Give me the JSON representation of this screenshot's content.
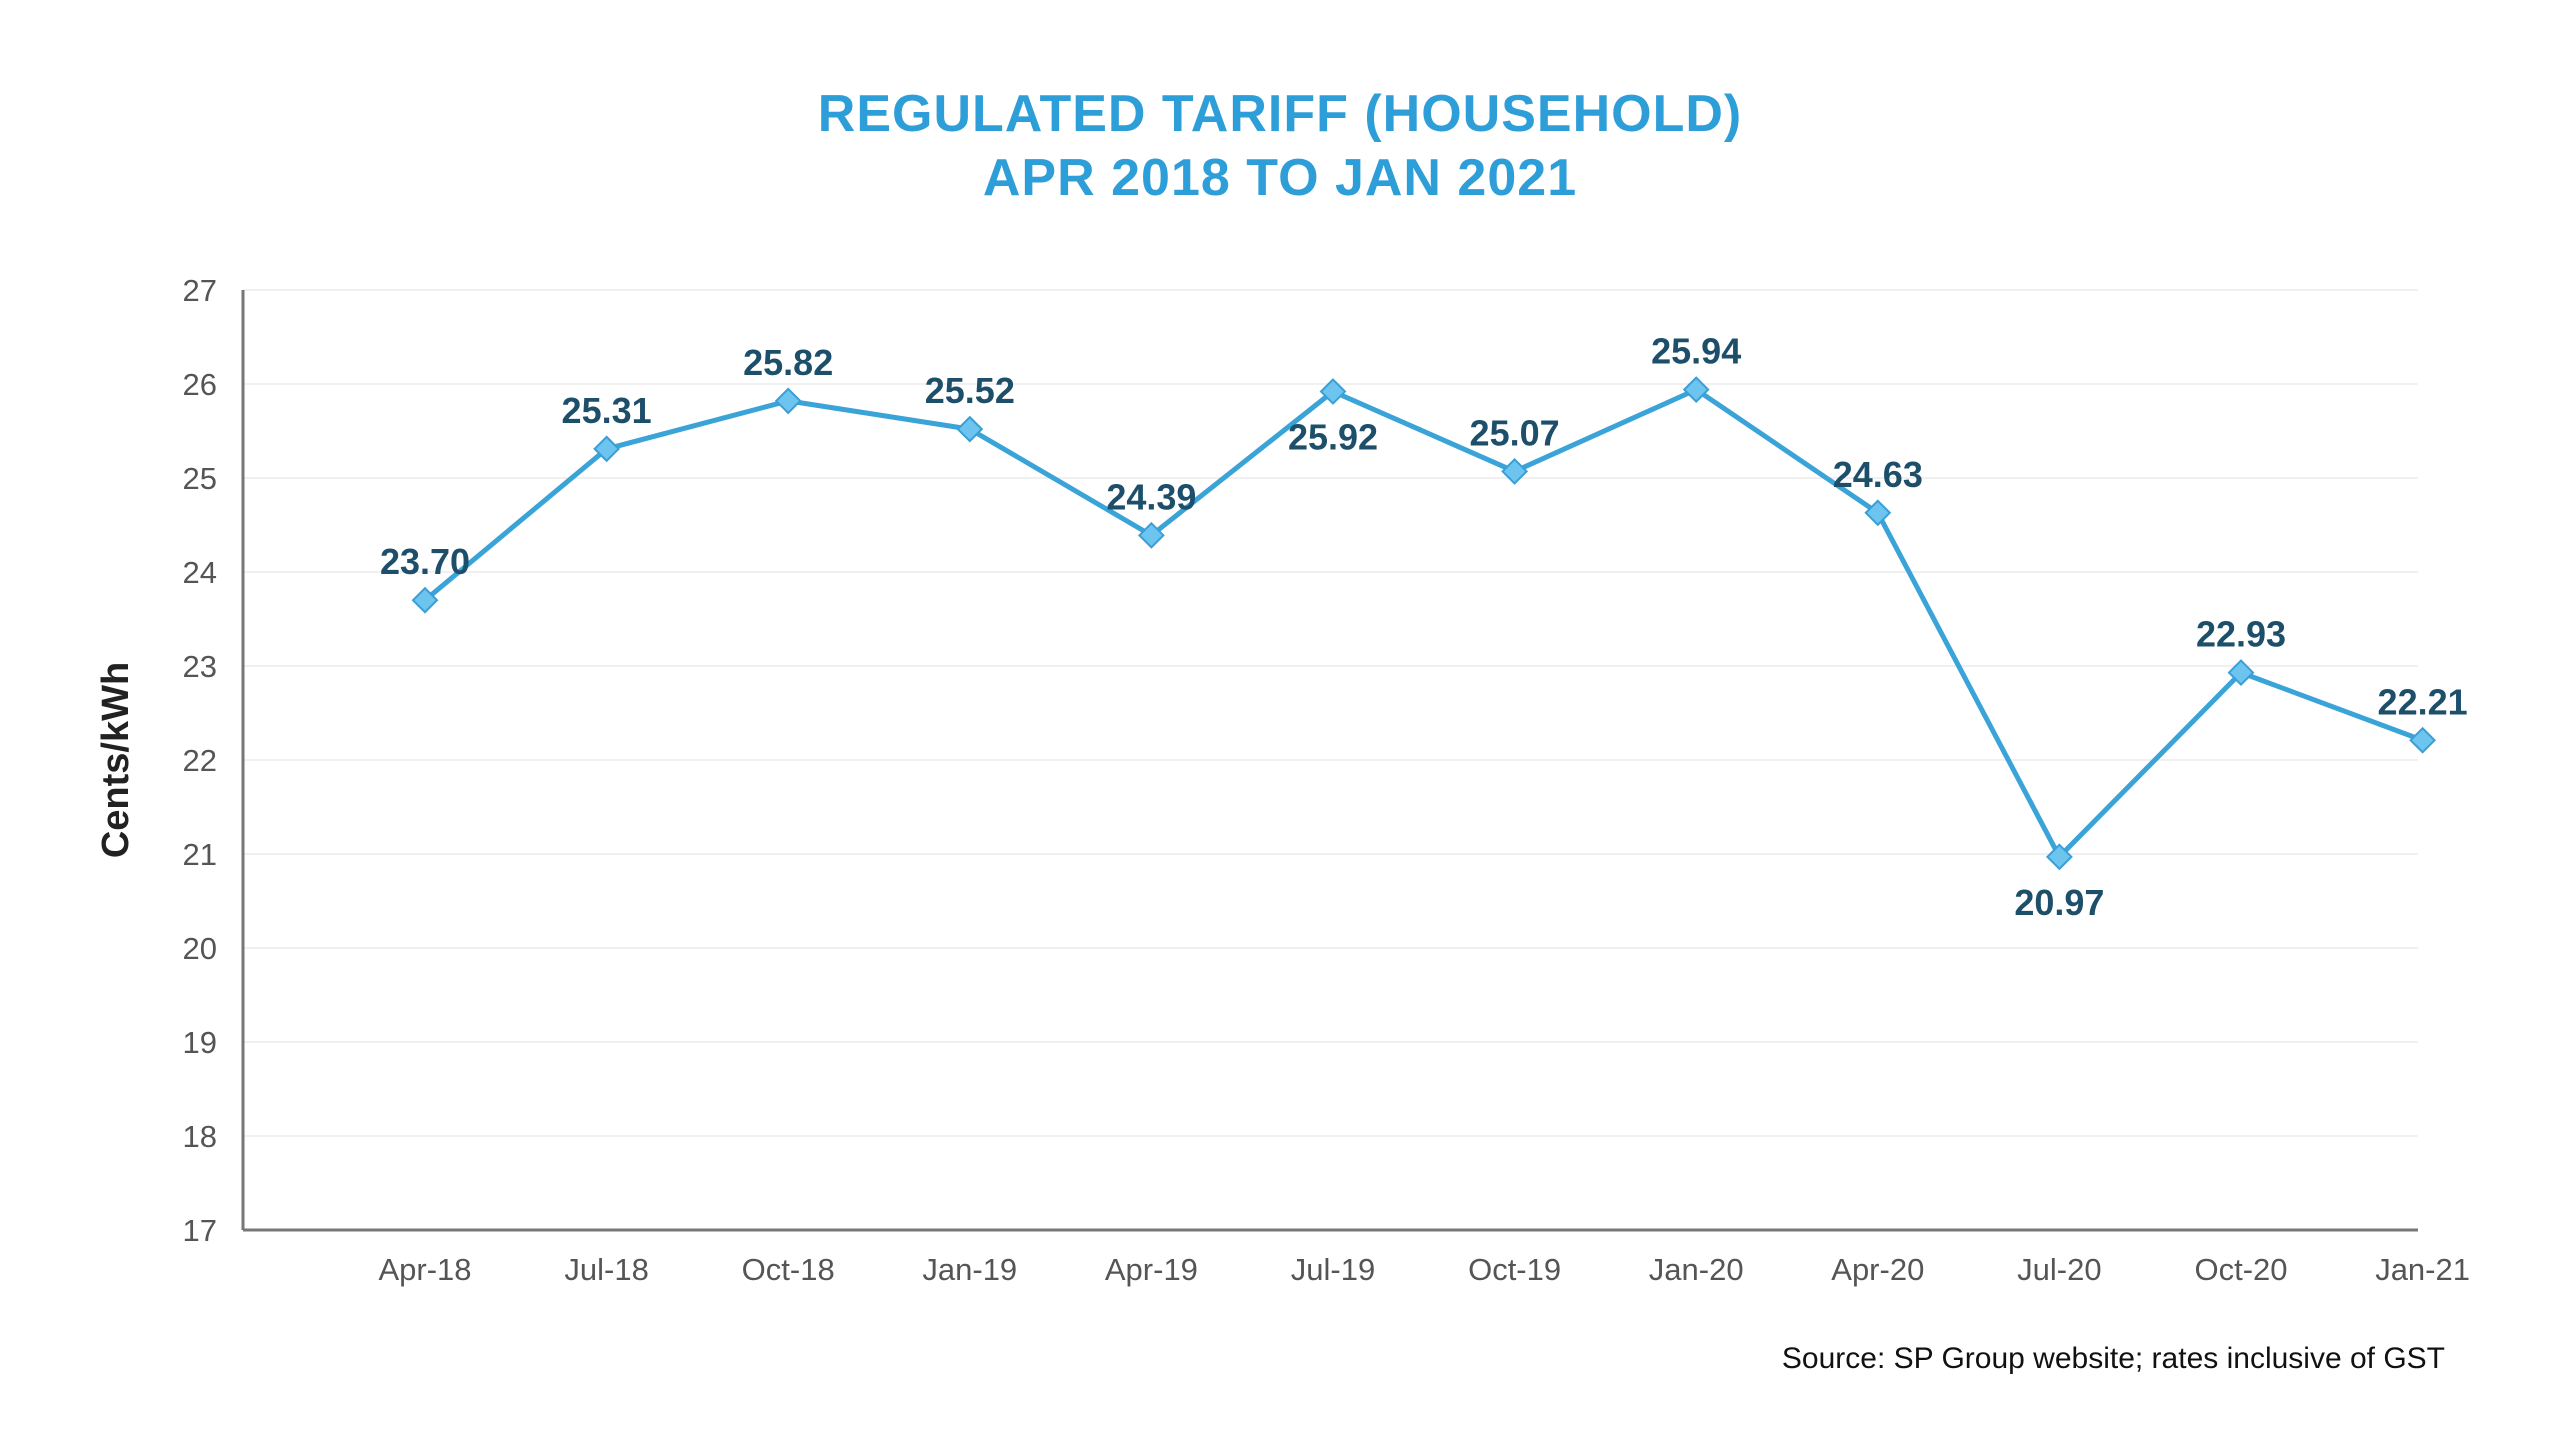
{
  "chart_data": {
    "type": "line",
    "title": [
      "REGULATED TARIFF (HOUSEHOLD)",
      "APR 2018 TO JAN 2021"
    ],
    "ylabel": "Cents/kWh",
    "xlabel": "",
    "ylim": [
      17,
      27
    ],
    "yticks": [
      "17",
      "18",
      "19",
      "20",
      "21",
      "22",
      "23",
      "24",
      "25",
      "26",
      "27"
    ],
    "categories": [
      "Apr-18",
      "Jul-18",
      "Oct-18",
      "Jan-19",
      "Apr-19",
      "Jul-19",
      "Oct-19",
      "Jan-20",
      "Apr-20",
      "Jul-20",
      "Oct-20",
      "Jan-21"
    ],
    "series": [
      {
        "values": [
          23.7,
          25.31,
          25.82,
          25.52,
          24.39,
          25.92,
          25.07,
          25.94,
          24.63,
          20.97,
          22.93,
          22.21
        ],
        "labels": [
          "23.70",
          "25.31",
          "25.82",
          "25.52",
          "24.39",
          "25.92",
          "25.07",
          "25.94",
          "24.63",
          "20.97",
          "22.93",
          "22.21"
        ],
        "label_positions": [
          "above",
          "above",
          "above",
          "above",
          "above",
          "below",
          "above",
          "above",
          "above",
          "below",
          "above",
          "above"
        ],
        "color": "#3aa3d8",
        "marker": "diamond",
        "marker_color": "#6cc4ef"
      }
    ],
    "grid": true,
    "legend": "none",
    "source_note": "Source: SP Group website; rates inclusive of GST"
  }
}
